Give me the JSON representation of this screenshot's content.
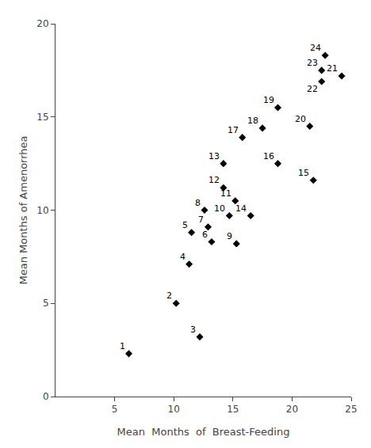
{
  "chart_data": {
    "type": "scatter",
    "x": [
      6.2,
      10.2,
      12.2,
      11.3,
      11.5,
      13.2,
      12.9,
      12.6,
      15.3,
      14.7,
      15.2,
      14.2,
      14.2,
      16.5,
      21.8,
      18.8,
      15.8,
      17.5,
      18.8,
      21.5,
      24.2,
      22.5,
      22.5,
      22.8
    ],
    "values": [
      2.3,
      5.0,
      3.2,
      7.1,
      8.8,
      8.3,
      9.1,
      10.0,
      8.2,
      9.7,
      10.5,
      11.2,
      12.5,
      9.7,
      11.6,
      12.5,
      13.9,
      14.4,
      15.5,
      14.5,
      17.2,
      16.9,
      17.5,
      18.3
    ],
    "annotations": [
      "1",
      "2",
      "3",
      "4",
      "5",
      "6",
      "7",
      "8",
      "9",
      "10",
      "11",
      "12",
      "13",
      "14",
      "15",
      "16",
      "17",
      "18",
      "19",
      "20",
      "21",
      "22",
      "23",
      "24"
    ],
    "xlabel": "Mean  Months  of  Breast-Feeding",
    "ylabel": "Mean Months of Amenorrhea",
    "xlim": [
      0,
      25
    ],
    "ylim": [
      0,
      20
    ],
    "xticks": [
      5,
      10,
      15,
      20,
      25
    ],
    "yticks": [
      0,
      5,
      10,
      15,
      20
    ],
    "color": "black",
    "marker": "diamond",
    "grid": false
  }
}
